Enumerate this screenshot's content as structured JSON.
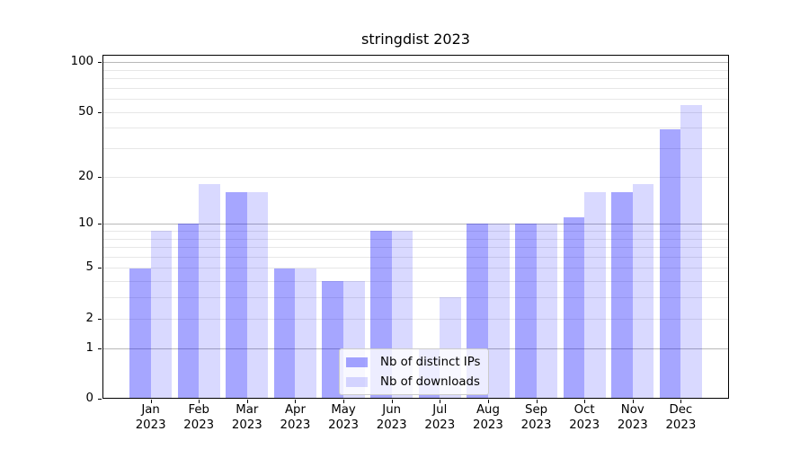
{
  "figure": {
    "title": "stringdist 2023",
    "background": "#ffffff"
  },
  "chart_data": {
    "type": "bar",
    "title": "stringdist 2023",
    "categories": [
      "Jan 2023",
      "Feb 2023",
      "Mar 2023",
      "Apr 2023",
      "May 2023",
      "Jun 2023",
      "Jul 2023",
      "Aug 2023",
      "Sep 2023",
      "Oct 2023",
      "Nov 2023",
      "Dec 2023"
    ],
    "series": [
      {
        "name": "Nb of distinct IPs",
        "color": "rgba(0,0,255,0.35)",
        "color_hex": "#a6a6ff",
        "values": [
          5,
          10,
          16,
          5,
          4,
          9,
          1,
          10,
          10,
          11,
          16,
          39
        ]
      },
      {
        "name": "Nb of downloads",
        "color": "rgba(0,0,255,0.15)",
        "color_hex": "#d9d9ff",
        "values": [
          9,
          18,
          16,
          5,
          4,
          9,
          3,
          10,
          10,
          16,
          18,
          55
        ]
      }
    ],
    "xlabel": "",
    "ylabel": "",
    "yscale": "log1p",
    "yticks": [
      100,
      50,
      20,
      10,
      5,
      2,
      1,
      0
    ],
    "ytick_labels": [
      "100",
      "50",
      "20",
      "10",
      "5",
      "2",
      "1",
      "0"
    ],
    "ylim": [
      0,
      111
    ],
    "grid": true,
    "legend_position": "lower center",
    "colors": {
      "major_grid": "#b8b8b8",
      "minor_grid": "#e7e7e7",
      "spine": "#000000",
      "text": "#000000"
    }
  }
}
